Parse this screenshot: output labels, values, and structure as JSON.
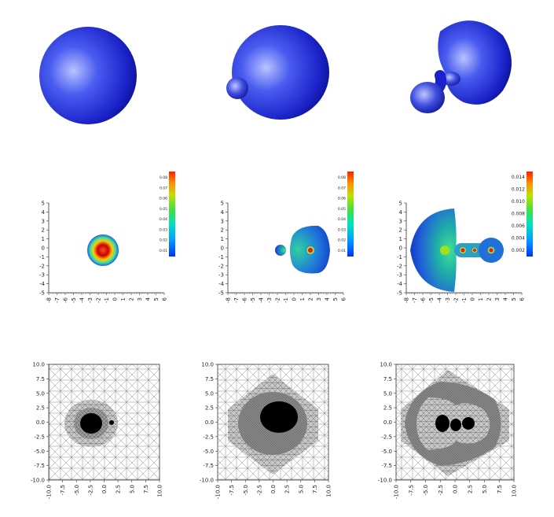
{
  "figure": {
    "row1_surfaces": [
      {
        "shape": "single-sphere"
      },
      {
        "shape": "sphere-with-small-bulb"
      },
      {
        "shape": "lobe-with-neck-and-bulb"
      }
    ],
    "row2_contour_plots": {
      "y_ticks": [
        "5",
        "4",
        "3",
        "2",
        "1",
        "0",
        "-1",
        "-2",
        "-3",
        "-4",
        "-5"
      ],
      "x_ticks": [
        "-8",
        "-7",
        "-6",
        "-5",
        "-4",
        "-3",
        "-2",
        "-1",
        "0",
        "1",
        "2",
        "3",
        "4",
        "5",
        "6"
      ],
      "colorbars": [
        {
          "ticks": [
            "0.08",
            "0.07",
            "0.06",
            "0.05",
            "0.04",
            "0.03",
            "0.02",
            "0.01"
          ]
        },
        {
          "ticks": [
            "0.08",
            "0.07",
            "0.06",
            "0.05",
            "0.04",
            "0.03",
            "0.02",
            "0.01"
          ]
        },
        {
          "ticks": [
            "0.014",
            "0.012",
            "0.010",
            "0.008",
            "0.006",
            "0.004",
            "0.002"
          ]
        }
      ],
      "colormap": [
        "#0033ff",
        "#00a0ff",
        "#00e0c0",
        "#40e040",
        "#c0e000",
        "#ff9000",
        "#ff2000"
      ]
    },
    "row3_mesh_plots": {
      "y_ticks": [
        "10.0",
        "7.5",
        "5.0",
        "2.5",
        "0.0",
        "-2.5",
        "-5.0",
        "-7.5",
        "-10.0"
      ],
      "x_ticks": [
        "-10.0",
        "-7.5",
        "-5.0",
        "-2.5",
        "0.0",
        "2.5",
        "5.0",
        "7.5",
        "10.0"
      ]
    }
  }
}
